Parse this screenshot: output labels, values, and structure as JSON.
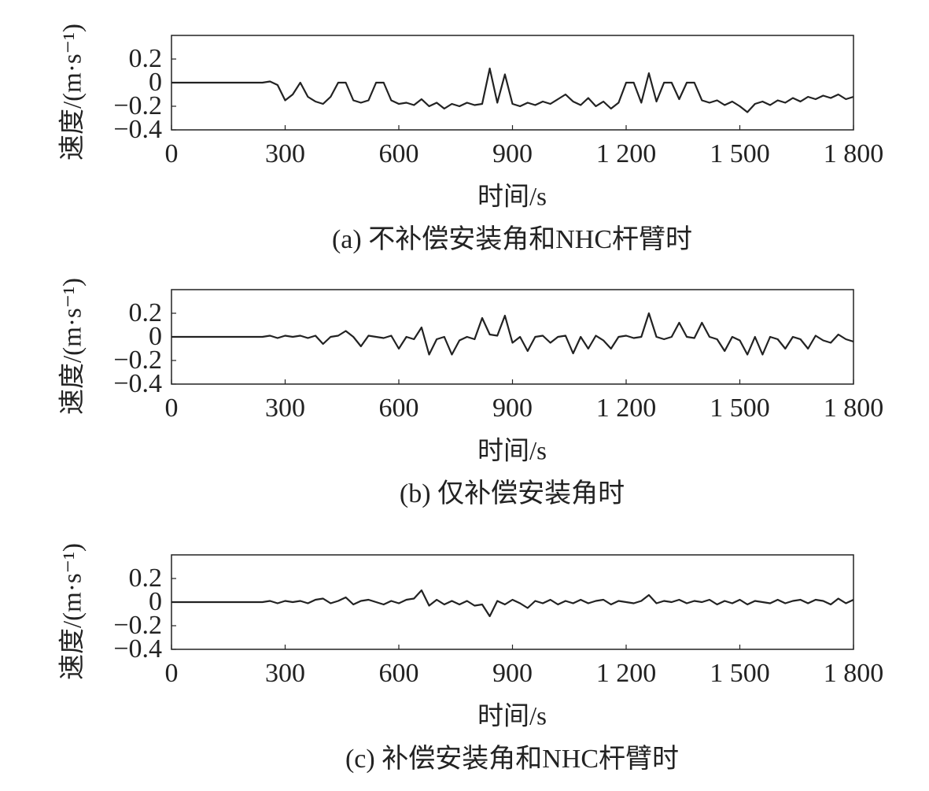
{
  "chart_data": [
    {
      "type": "line",
      "ylabel": "速度/(m·s⁻¹)",
      "xlabel": "时间/s",
      "caption": "(a) 不补偿安装角和NHC杆臂时",
      "xlim": [
        0,
        1800
      ],
      "ylim": [
        -0.4,
        0.4
      ],
      "xticks": [
        0,
        300,
        600,
        900,
        {
          "value": 1200,
          "label": "1 200"
        },
        {
          "value": 1500,
          "label": "1 500"
        },
        {
          "value": 1800,
          "label": "1 800"
        }
      ],
      "yticks": [
        {
          "value": -0.4,
          "label": "−0.4"
        },
        {
          "value": -0.2,
          "label": "−0.2"
        },
        0,
        0.2
      ],
      "x": [
        0,
        20,
        40,
        60,
        80,
        100,
        120,
        140,
        160,
        180,
        200,
        220,
        240,
        260,
        280,
        300,
        320,
        340,
        360,
        380,
        400,
        420,
        440,
        460,
        480,
        500,
        520,
        540,
        560,
        580,
        600,
        620,
        640,
        660,
        680,
        700,
        720,
        740,
        760,
        780,
        800,
        820,
        840,
        860,
        880,
        900,
        920,
        940,
        960,
        980,
        1000,
        1020,
        1040,
        1060,
        1080,
        1100,
        1120,
        1140,
        1160,
        1180,
        1200,
        1220,
        1240,
        1260,
        1280,
        1300,
        1320,
        1340,
        1360,
        1380,
        1400,
        1420,
        1440,
        1460,
        1480,
        1500,
        1520,
        1540,
        1560,
        1580,
        1600,
        1620,
        1640,
        1660,
        1680,
        1700,
        1720,
        1740,
        1760,
        1780,
        1800
      ],
      "series": [
        {
          "color": "#222222",
          "values": [
            0,
            0,
            0,
            0,
            0,
            0,
            0,
            0,
            0,
            0,
            0,
            0,
            0,
            0.01,
            -0.02,
            -0.15,
            -0.1,
            0,
            -0.12,
            -0.16,
            -0.18,
            -0.12,
            0,
            0,
            -0.15,
            -0.17,
            -0.15,
            0,
            0,
            -0.15,
            -0.18,
            -0.17,
            -0.19,
            -0.14,
            -0.2,
            -0.17,
            -0.22,
            -0.18,
            -0.2,
            -0.17,
            -0.19,
            -0.18,
            0.12,
            -0.17,
            0.07,
            -0.18,
            -0.2,
            -0.17,
            -0.19,
            -0.16,
            -0.18,
            -0.14,
            -0.1,
            -0.16,
            -0.19,
            -0.13,
            -0.2,
            -0.16,
            -0.22,
            -0.17,
            0,
            0,
            -0.17,
            0.08,
            -0.16,
            0,
            0,
            -0.14,
            0,
            0,
            -0.15,
            -0.17,
            -0.15,
            -0.19,
            -0.16,
            -0.2,
            -0.25,
            -0.18,
            -0.16,
            -0.19,
            -0.15,
            -0.17,
            -0.13,
            -0.16,
            -0.12,
            -0.14,
            -0.11,
            -0.13,
            -0.1,
            -0.14,
            -0.12
          ]
        }
      ]
    },
    {
      "type": "line",
      "ylabel": "速度/(m·s⁻¹)",
      "xlabel": "时间/s",
      "caption": "(b) 仅补偿安装角时",
      "xlim": [
        0,
        1800
      ],
      "ylim": [
        -0.4,
        0.4
      ],
      "xticks": [
        0,
        300,
        600,
        900,
        {
          "value": 1200,
          "label": "1 200"
        },
        {
          "value": 1500,
          "label": "1 500"
        },
        {
          "value": 1800,
          "label": "1 800"
        }
      ],
      "yticks": [
        {
          "value": -0.4,
          "label": "−0.4"
        },
        {
          "value": -0.2,
          "label": "−0.2"
        },
        0,
        0.2
      ],
      "x": [
        0,
        20,
        40,
        60,
        80,
        100,
        120,
        140,
        160,
        180,
        200,
        220,
        240,
        260,
        280,
        300,
        320,
        340,
        360,
        380,
        400,
        420,
        440,
        460,
        480,
        500,
        520,
        540,
        560,
        580,
        600,
        620,
        640,
        660,
        680,
        700,
        720,
        740,
        760,
        780,
        800,
        820,
        840,
        860,
        880,
        900,
        920,
        940,
        960,
        980,
        1000,
        1020,
        1040,
        1060,
        1080,
        1100,
        1120,
        1140,
        1160,
        1180,
        1200,
        1220,
        1240,
        1260,
        1280,
        1300,
        1320,
        1340,
        1360,
        1380,
        1400,
        1420,
        1440,
        1460,
        1480,
        1500,
        1520,
        1540,
        1560,
        1580,
        1600,
        1620,
        1640,
        1660,
        1680,
        1700,
        1720,
        1740,
        1760,
        1780,
        1800
      ],
      "series": [
        {
          "color": "#222222",
          "values": [
            0,
            0,
            0,
            0,
            0,
            0,
            0,
            0,
            0,
            0,
            0,
            0,
            0,
            0.01,
            -0.01,
            0.01,
            0,
            0.01,
            -0.01,
            0.01,
            -0.06,
            0,
            0.01,
            0.05,
            0,
            -0.08,
            0.01,
            0,
            -0.01,
            0.01,
            -0.1,
            0,
            -0.02,
            0.08,
            -0.15,
            -0.02,
            0,
            -0.15,
            -0.03,
            0,
            -0.02,
            0.16,
            0.02,
            0.01,
            0.18,
            -0.05,
            0,
            -0.12,
            0,
            0.01,
            -0.05,
            0,
            0.01,
            -0.14,
            0,
            -0.1,
            0.01,
            -0.03,
            -0.1,
            0,
            0.01,
            -0.01,
            0,
            0.2,
            0,
            -0.02,
            0,
            0.12,
            0,
            -0.01,
            0.12,
            0,
            -0.02,
            -0.12,
            0,
            -0.03,
            -0.15,
            0,
            -0.15,
            0,
            -0.02,
            -0.1,
            0,
            -0.02,
            -0.1,
            0.01,
            -0.03,
            -0.05,
            0.02,
            -0.02,
            -0.04
          ]
        }
      ]
    },
    {
      "type": "line",
      "ylabel": "速度/(m·s⁻¹)",
      "xlabel": "时间/s",
      "caption": "(c) 补偿安装角和NHC杆臂时",
      "xlim": [
        0,
        1800
      ],
      "ylim": [
        -0.4,
        0.4
      ],
      "xticks": [
        0,
        300,
        600,
        900,
        {
          "value": 1200,
          "label": "1 200"
        },
        {
          "value": 1500,
          "label": "1 500"
        },
        {
          "value": 1800,
          "label": "1 800"
        }
      ],
      "yticks": [
        {
          "value": -0.4,
          "label": "−0.4"
        },
        {
          "value": -0.2,
          "label": "−0.2"
        },
        0,
        0.2
      ],
      "x": [
        0,
        20,
        40,
        60,
        80,
        100,
        120,
        140,
        160,
        180,
        200,
        220,
        240,
        260,
        280,
        300,
        320,
        340,
        360,
        380,
        400,
        420,
        440,
        460,
        480,
        500,
        520,
        540,
        560,
        580,
        600,
        620,
        640,
        660,
        680,
        700,
        720,
        740,
        760,
        780,
        800,
        820,
        840,
        860,
        880,
        900,
        920,
        940,
        960,
        980,
        1000,
        1020,
        1040,
        1060,
        1080,
        1100,
        1120,
        1140,
        1160,
        1180,
        1200,
        1220,
        1240,
        1260,
        1280,
        1300,
        1320,
        1340,
        1360,
        1380,
        1400,
        1420,
        1440,
        1460,
        1480,
        1500,
        1520,
        1540,
        1560,
        1580,
        1600,
        1620,
        1640,
        1660,
        1680,
        1700,
        1720,
        1740,
        1760,
        1780,
        1800
      ],
      "series": [
        {
          "color": "#222222",
          "values": [
            0,
            0,
            0,
            0,
            0,
            0,
            0,
            0,
            0,
            0,
            0,
            0,
            0,
            0.01,
            -0.01,
            0.01,
            0,
            0.01,
            -0.01,
            0.02,
            0.03,
            -0.01,
            0.01,
            0.04,
            -0.02,
            0.01,
            0.02,
            0,
            -0.02,
            0.01,
            -0.01,
            0.02,
            0.03,
            0.1,
            -0.03,
            0.02,
            -0.02,
            0.01,
            -0.02,
            0.01,
            -0.03,
            -0.02,
            -0.12,
            0.01,
            -0.02,
            0.02,
            -0.01,
            -0.05,
            0.01,
            -0.01,
            0.02,
            -0.02,
            0.01,
            -0.01,
            0.02,
            -0.01,
            0.01,
            0.02,
            -0.02,
            0.01,
            0,
            -0.01,
            0.01,
            0.06,
            -0.01,
            0.01,
            0,
            0.02,
            -0.01,
            0.01,
            0,
            0.02,
            -0.02,
            0.01,
            -0.01,
            0.02,
            -0.02,
            0.01,
            0,
            -0.01,
            0.02,
            -0.01,
            0.01,
            0.02,
            -0.01,
            0.02,
            0.01,
            -0.02,
            0.03,
            -0.01,
            0.02
          ]
        }
      ]
    }
  ]
}
